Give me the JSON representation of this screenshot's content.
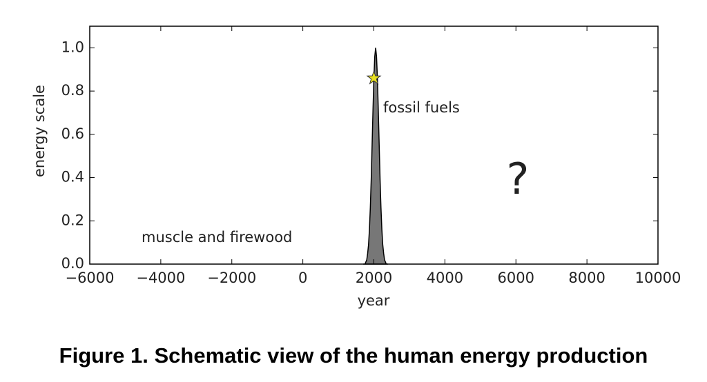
{
  "chart_data": {
    "type": "area",
    "caption": "Figure 1. Schematic view of the human energy production",
    "x_label": "year",
    "y_label": "energy scale",
    "xlim": [
      -6000,
      10000
    ],
    "ylim": [
      0,
      1.1
    ],
    "xticks": [
      {
        "value": -6000,
        "label": "−6000"
      },
      {
        "value": -4000,
        "label": "−4000"
      },
      {
        "value": -2000,
        "label": "−2000"
      },
      0,
      2000,
      4000,
      6000,
      8000,
      10000
    ],
    "yticks": [
      {
        "value": 0,
        "label": "0.0"
      },
      0.2,
      0.4,
      0.6,
      0.8,
      {
        "value": 1,
        "label": "1.0"
      }
    ],
    "x": [
      1700,
      1750,
      1800,
      1825,
      1850,
      1875,
      1900,
      1925,
      1950,
      1975,
      2000,
      2025,
      2050,
      2075,
      2100,
      2125,
      2150,
      2175,
      2200,
      2225,
      2250,
      2275,
      2300,
      2350,
      2400
    ],
    "values": [
      0,
      0,
      0.02,
      0.05,
      0.09,
      0.16,
      0.26,
      0.39,
      0.55,
      0.71,
      0.86,
      0.96,
      1,
      0.96,
      0.86,
      0.71,
      0.55,
      0.39,
      0.26,
      0.16,
      0.09,
      0.05,
      0.02,
      0,
      0
    ],
    "color": "#777777",
    "marker": {
      "x": 2000,
      "y": 0.86,
      "color": "#e8e020"
    },
    "annotations": [
      "fossil fuels",
      "muscle and firewood",
      "?"
    ]
  }
}
